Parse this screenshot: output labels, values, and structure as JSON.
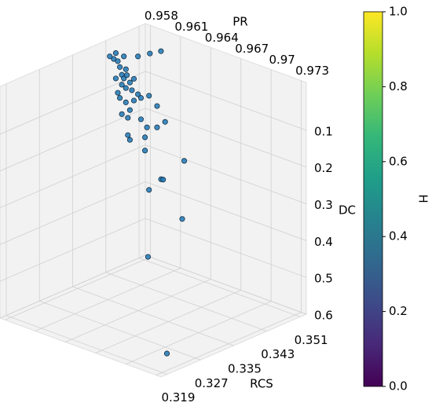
{
  "chart_data": {
    "type": "scatter3d",
    "x_label": "PR",
    "y_label": "RCS",
    "z_label": "DC",
    "xlim": [
      0.9575,
      0.9735
    ],
    "xticks": [
      0.958,
      0.961,
      0.964,
      0.967,
      0.97,
      0.973
    ],
    "ylim": [
      0.3525,
      0.3175
    ],
    "yticks": [
      0.351,
      0.343,
      0.335,
      0.327,
      0.319
    ],
    "zlim": [
      -0.03,
      0.6
    ],
    "zticks": [
      0.1,
      0.2,
      0.3,
      0.4,
      0.5,
      0.6
    ],
    "grid": true,
    "color": "#1f77b4",
    "x": [
      0.9587,
      0.9591,
      0.9597,
      0.9593,
      0.9599,
      0.9595,
      0.9597,
      0.96,
      0.9603,
      0.9595,
      0.9599,
      0.9605,
      0.9591,
      0.9611,
      0.9614,
      0.9607,
      0.9599,
      0.9622,
      0.963,
      0.9595,
      0.9601,
      0.9614,
      0.9638,
      0.962,
      0.963,
      0.9618,
      0.9601,
      0.9603,
      0.9618,
      0.9657,
      0.9634,
      0.9636,
      0.9622,
      0.9655,
      0.9621,
      0.9719,
      0.9611,
      0.9605,
      0.9601,
      0.9589,
      0.9607,
      0.9603,
      0.9593,
      0.9583,
      0.9589
    ],
    "y": [
      0.342,
      0.342,
      0.342,
      0.342,
      0.342,
      0.342,
      0.342,
      0.342,
      0.342,
      0.342,
      0.342,
      0.342,
      0.342,
      0.342,
      0.342,
      0.342,
      0.342,
      0.342,
      0.342,
      0.342,
      0.342,
      0.342,
      0.342,
      0.342,
      0.342,
      0.342,
      0.342,
      0.342,
      0.342,
      0.342,
      0.342,
      0.342,
      0.342,
      0.342,
      0.342,
      0.3228,
      0.342,
      0.349,
      0.3473,
      0.342,
      0.342,
      0.342,
      0.342,
      0.342,
      0.342
    ],
    "z": [
      0.003,
      0.005,
      -0.014,
      0.019,
      0.019,
      0.038,
      0.046,
      0.034,
      0.051,
      0.065,
      0.07,
      0.07,
      0.091,
      0.075,
      0.082,
      0.096,
      0.109,
      0.068,
      0.088,
      0.145,
      0.149,
      0.14,
      0.123,
      0.156,
      0.146,
      0.185,
      0.196,
      0.207,
      0.221,
      0.21,
      0.283,
      0.282,
      0.324,
      0.37,
      0.507,
      0.578,
      -0.028,
      -0.002,
      0.0,
      0.054,
      0.037,
      0.126,
      0.103,
      0.0,
      -0.015
    ],
    "colorbar": {
      "label": "H",
      "colormap": "viridis",
      "lim": [
        0,
        1
      ],
      "ticks": [
        {
          "value": 0,
          "label": "0.0"
        },
        {
          "value": 0.2,
          "label": "0.2"
        },
        {
          "value": 0.4,
          "label": "0.4"
        },
        {
          "value": 0.6,
          "label": "0.6"
        },
        {
          "value": 0.8,
          "label": "0.8"
        },
        {
          "value": 1,
          "label": "1.0"
        }
      ]
    }
  }
}
